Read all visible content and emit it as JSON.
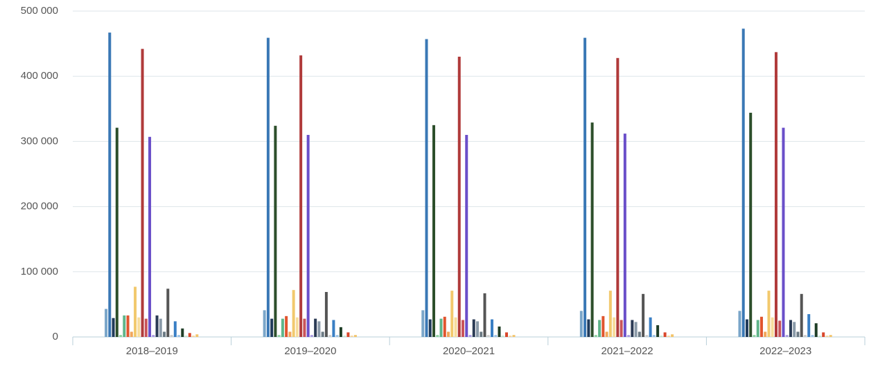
{
  "chart_data": {
    "type": "bar",
    "categories": [
      "2018–2019",
      "2019–2020",
      "2020–2021",
      "2021–2022",
      "2022–2023"
    ],
    "ylim": [
      0,
      500000
    ],
    "yticks": [
      {
        "value": 0,
        "label": "0"
      },
      {
        "value": 100000,
        "label": "100 000"
      },
      {
        "value": 200000,
        "label": "200 000"
      },
      {
        "value": 300000,
        "label": "300 000"
      },
      {
        "value": 400000,
        "label": "400 000"
      },
      {
        "value": 500000,
        "label": "500 000"
      }
    ],
    "grid": true,
    "series": [
      {
        "color": "#7aa6c9",
        "values": [
          43000,
          41000,
          41000,
          40000,
          40000
        ]
      },
      {
        "color": "#3a78b5",
        "values": [
          467000,
          459000,
          457000,
          459000,
          473000
        ]
      },
      {
        "color": "#1f3a5a",
        "values": [
          29000,
          28000,
          27000,
          27000,
          27000
        ]
      },
      {
        "color": "#2d4f2b",
        "values": [
          321000,
          324000,
          325000,
          329000,
          344000
        ]
      },
      {
        "color": "#8dd3a0",
        "values": [
          3000,
          3000,
          3000,
          3000,
          3000
        ]
      },
      {
        "color": "#5fb58a",
        "values": [
          33000,
          28000,
          28000,
          26000,
          26000
        ]
      },
      {
        "color": "#e0552e",
        "values": [
          33000,
          32000,
          31000,
          32000,
          31000
        ]
      },
      {
        "color": "#f2a65a",
        "values": [
          8000,
          8000,
          8000,
          8000,
          8000
        ]
      },
      {
        "color": "#f2c96d",
        "values": [
          77000,
          72000,
          71000,
          71000,
          71000
        ]
      },
      {
        "color": "#f7dc9c",
        "values": [
          30000,
          30000,
          30000,
          30000,
          30000
        ]
      },
      {
        "color": "#b03a3a",
        "values": [
          442000,
          432000,
          430000,
          428000,
          437000
        ]
      },
      {
        "color": "#c9545a",
        "values": [
          28000,
          28000,
          26000,
          26000,
          25000
        ]
      },
      {
        "color": "#6a4fc9",
        "values": [
          307000,
          310000,
          310000,
          312000,
          321000
        ]
      },
      {
        "color": "#a99be0",
        "values": [
          3000,
          3000,
          3000,
          3000,
          3000
        ]
      },
      {
        "color": "#2b3b55",
        "values": [
          33000,
          28000,
          27000,
          26000,
          26000
        ]
      },
      {
        "color": "#8a9aa8",
        "values": [
          28000,
          24000,
          24000,
          23000,
          23000
        ]
      },
      {
        "color": "#6b7a84",
        "values": [
          8000,
          8000,
          8000,
          8000,
          8000
        ]
      },
      {
        "color": "#555555",
        "values": [
          74000,
          69000,
          67000,
          66000,
          66000
        ]
      },
      {
        "color": "#cccccc",
        "values": [
          3000,
          3000,
          3000,
          3000,
          3000
        ]
      },
      {
        "color": "#3a7fc4",
        "values": [
          24000,
          26000,
          27000,
          30000,
          35000
        ]
      },
      {
        "color": "#9cc3e6",
        "values": [
          3000,
          3000,
          3000,
          3000,
          3000
        ]
      },
      {
        "color": "#1e3d26",
        "values": [
          13000,
          15000,
          16000,
          18000,
          21000
        ]
      },
      {
        "color": "#c6e6cf",
        "values": [
          2000,
          2000,
          2000,
          2000,
          2000
        ]
      },
      {
        "color": "#d9472b",
        "values": [
          6000,
          7000,
          7000,
          7000,
          7000
        ]
      },
      {
        "color": "#f9d69a",
        "values": [
          2000,
          2000,
          2000,
          2000,
          2000
        ]
      },
      {
        "color": "#f3c46a",
        "values": [
          4000,
          3000,
          3000,
          4000,
          3000
        ]
      }
    ]
  }
}
